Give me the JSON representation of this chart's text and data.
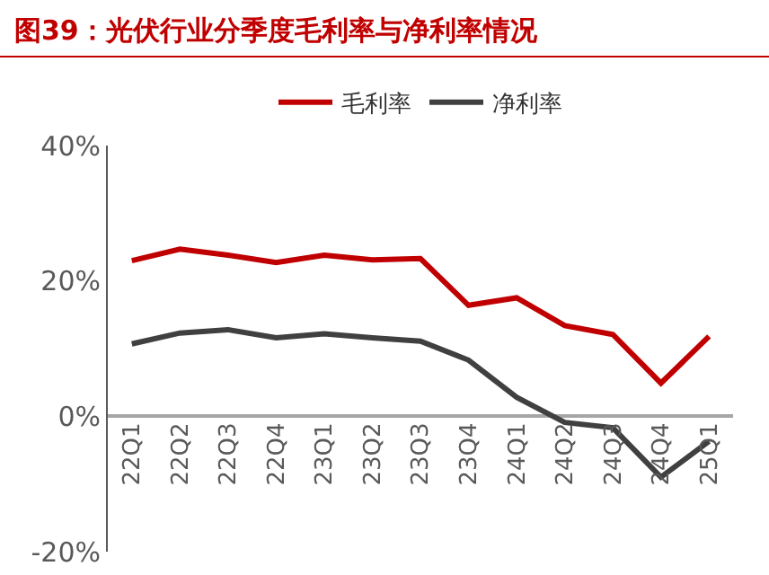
{
  "chart_data": {
    "type": "line",
    "title": "图39：光伏行业分季度毛利率与净利率情况",
    "categories": [
      "22Q1",
      "22Q2",
      "22Q3",
      "22Q4",
      "23Q1",
      "23Q2",
      "23Q3",
      "23Q4",
      "24Q1",
      "24Q2",
      "24Q3",
      "24Q4",
      "25Q1"
    ],
    "series": [
      {
        "name": "毛利率",
        "color": "#c00000",
        "values": [
          23.0,
          24.7,
          23.8,
          22.7,
          23.8,
          23.1,
          23.3,
          16.4,
          17.5,
          13.4,
          12.1,
          4.9,
          11.8
        ]
      },
      {
        "name": "净利率",
        "color": "#404040",
        "values": [
          10.7,
          12.3,
          12.8,
          11.6,
          12.2,
          11.6,
          11.1,
          8.3,
          2.8,
          -0.9,
          -1.7,
          -9.0,
          -3.7
        ]
      }
    ],
    "ylim": [
      -20,
      40
    ],
    "yticks": [
      {
        "value": -20,
        "label": "-20%"
      },
      {
        "value": 0,
        "label": "0%"
      },
      {
        "value": 20,
        "label": "20%"
      },
      {
        "value": 40,
        "label": "40%"
      }
    ],
    "grid": false,
    "legend": "top",
    "marker": "none",
    "line_style": "solid"
  }
}
